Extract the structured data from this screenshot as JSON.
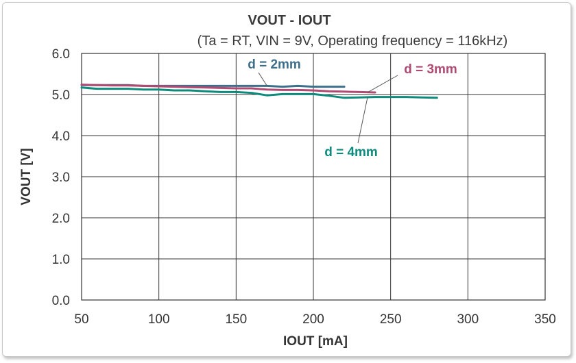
{
  "chart_data": {
    "type": "line",
    "title": "VOUT - IOUT",
    "subtitle": "(Ta = RT, VIN = 9V, Operating frequency = 116kHz)",
    "xlabel": "IOUT [mA]",
    "ylabel": "VOUT [V]",
    "xlim": [
      50,
      350
    ],
    "ylim": [
      0,
      6
    ],
    "xticks": [
      "50",
      "100",
      "150",
      "200",
      "250",
      "300",
      "350"
    ],
    "xtick_values": [
      50,
      100,
      150,
      200,
      250,
      300,
      350
    ],
    "yticks": [
      "0.0",
      "1.0",
      "2.0",
      "3.0",
      "4.0",
      "5.0",
      "6.0"
    ],
    "ytick_values": [
      0,
      1,
      2,
      3,
      4,
      5,
      6
    ],
    "grid": true,
    "series": [
      {
        "name": "d = 2mm",
        "color": "#3d6e8a",
        "x": [
          50,
          60,
          70,
          80,
          90,
          100,
          110,
          120,
          130,
          140,
          150,
          160,
          170,
          180,
          190,
          200,
          210,
          220
        ],
        "y": [
          5.23,
          5.23,
          5.23,
          5.23,
          5.21,
          5.21,
          5.21,
          5.21,
          5.21,
          5.21,
          5.21,
          5.21,
          5.21,
          5.19,
          5.21,
          5.19,
          5.19,
          5.19
        ]
      },
      {
        "name": "d = 3mm",
        "color": "#b04a72",
        "x": [
          50,
          60,
          70,
          80,
          90,
          100,
          110,
          120,
          130,
          140,
          150,
          160,
          170,
          180,
          190,
          200,
          210,
          220,
          230,
          240
        ],
        "y": [
          5.24,
          5.23,
          5.22,
          5.22,
          5.21,
          5.2,
          5.19,
          5.18,
          5.17,
          5.16,
          5.15,
          5.15,
          5.12,
          5.11,
          5.11,
          5.1,
          5.08,
          5.07,
          5.06,
          5.05
        ]
      },
      {
        "name": "d = 4mm",
        "color": "#0e8a7c",
        "x": [
          50,
          60,
          70,
          80,
          90,
          100,
          110,
          120,
          130,
          140,
          150,
          160,
          170,
          180,
          190,
          200,
          210,
          220,
          230,
          240,
          250,
          260,
          270,
          280
        ],
        "y": [
          5.17,
          5.14,
          5.14,
          5.14,
          5.12,
          5.12,
          5.1,
          5.1,
          5.08,
          5.06,
          5.06,
          5.04,
          4.98,
          5.01,
          5.01,
          5.01,
          4.97,
          4.92,
          4.93,
          4.94,
          4.94,
          4.94,
          4.93,
          4.92
        ]
      }
    ],
    "annotations": [
      {
        "series": 0,
        "text": "d = 2mm"
      },
      {
        "series": 1,
        "text": "d = 3mm"
      },
      {
        "series": 2,
        "text": "d = 4mm"
      }
    ]
  }
}
